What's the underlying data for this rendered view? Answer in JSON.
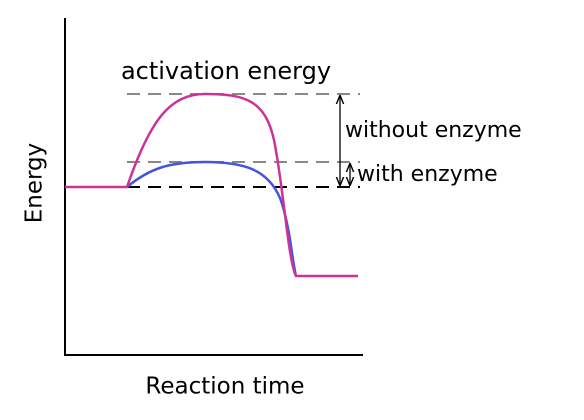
{
  "labels": {
    "activation": "activation energy",
    "without": "without enzyme",
    "with": "with enzyme"
  },
  "axes": {
    "y_label": "Energy",
    "x_label": "Reaction time"
  }
}
